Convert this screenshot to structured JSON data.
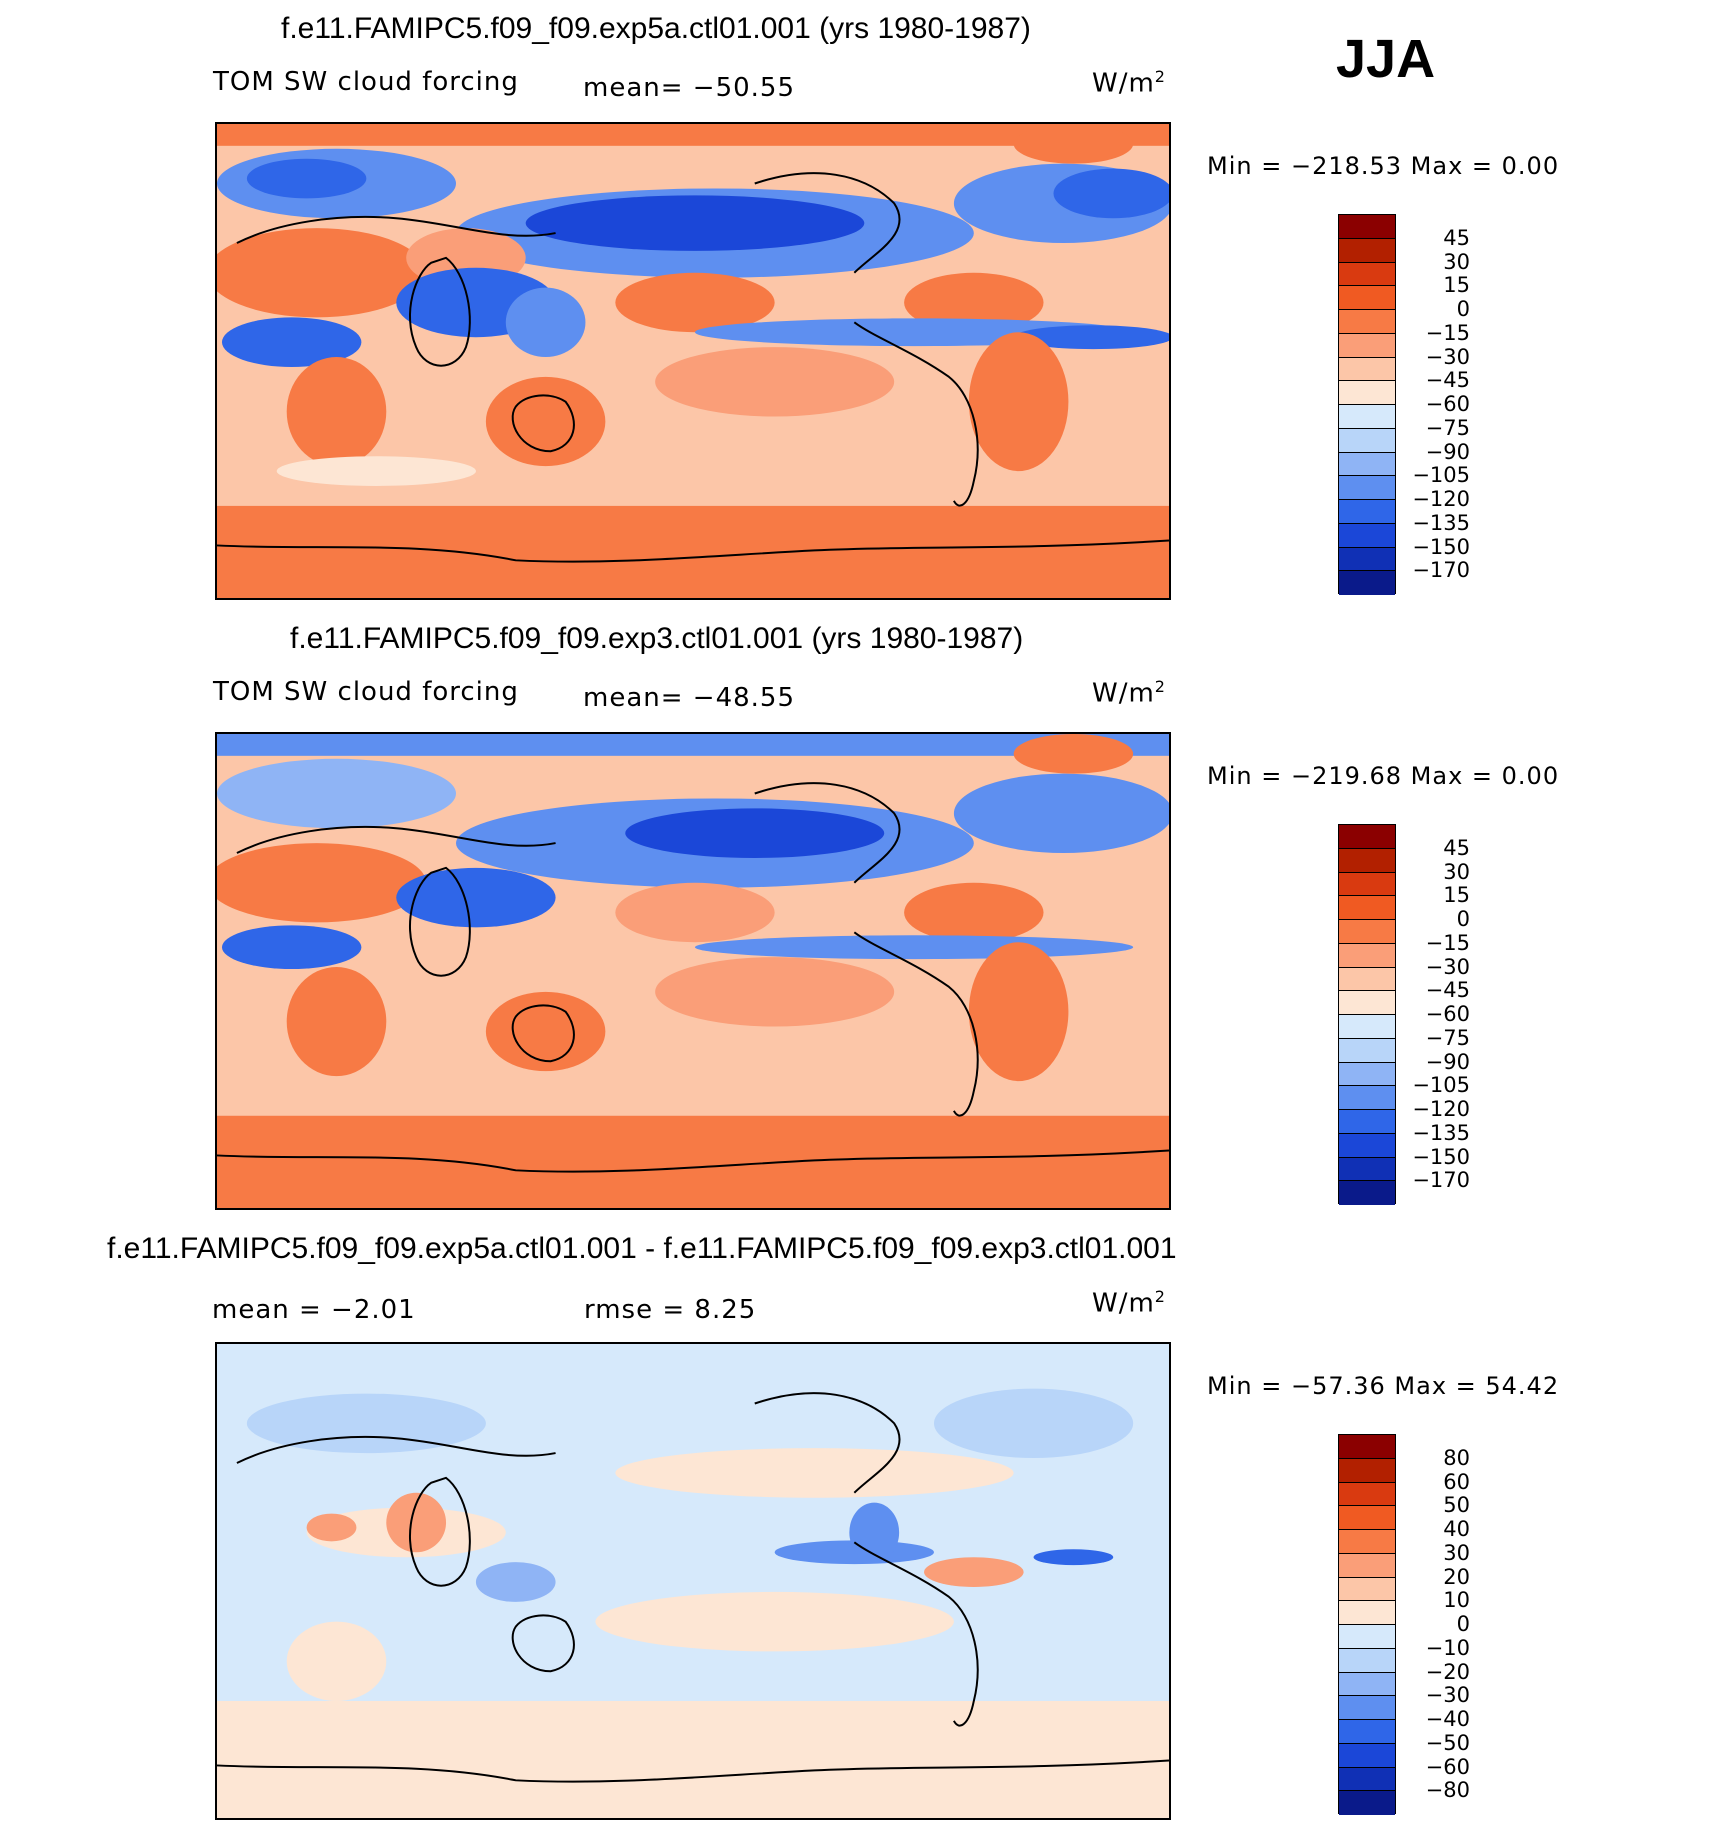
{
  "season": "JJA",
  "panels": [
    {
      "title": "f.e11.FAMIPC5.f09_f09.exp5a.ctl01.001 (yrs 1980-1987)",
      "left_label": "TOM SW cloud forcing",
      "stat": "mean=  −50.55",
      "stat2": "",
      "units": "W/m",
      "units_sup": "2",
      "minmax": "Min  =  −218.53  Max  =     0.00",
      "colorbar": {
        "labels": [
          "45",
          "30",
          "15",
          "0",
          "−15",
          "−30",
          "−45",
          "−60",
          "−75",
          "−90",
          "−105",
          "−120",
          "−135",
          "−150",
          "−170"
        ],
        "colors": [
          "#8b0000",
          "#b22000",
          "#d93a10",
          "#f05a22",
          "#f77a45",
          "#fa9e78",
          "#fcc6a8",
          "#fde6d4",
          "#d6e9fb",
          "#b8d5f9",
          "#8fb4f5",
          "#5e8ff0",
          "#2f66e8",
          "#1b47d8",
          "#1030b5",
          "#0a1a8a"
        ]
      },
      "map_type": "absolute"
    },
    {
      "title": "f.e11.FAMIPC5.f09_f09.exp3.ctl01.001 (yrs 1980-1987)",
      "left_label": "TOM SW cloud forcing",
      "stat": "mean=  −48.55",
      "stat2": "",
      "units": "W/m",
      "units_sup": "2",
      "minmax": "Min  =  −219.68  Max  =     0.00",
      "colorbar": {
        "labels": [
          "45",
          "30",
          "15",
          "0",
          "−15",
          "−30",
          "−45",
          "−60",
          "−75",
          "−90",
          "−105",
          "−120",
          "−135",
          "−150",
          "−170"
        ],
        "colors": [
          "#8b0000",
          "#b22000",
          "#d93a10",
          "#f05a22",
          "#f77a45",
          "#fa9e78",
          "#fcc6a8",
          "#fde6d4",
          "#d6e9fb",
          "#b8d5f9",
          "#8fb4f5",
          "#5e8ff0",
          "#2f66e8",
          "#1b47d8",
          "#1030b5",
          "#0a1a8a"
        ]
      },
      "map_type": "absolute"
    },
    {
      "title": "f.e11.FAMIPC5.f09_f09.exp5a.ctl01.001 - f.e11.FAMIPC5.f09_f09.exp3.ctl01.001",
      "left_label": "mean  =    −2.01",
      "stat": "rmse  =      8.25",
      "stat2": "",
      "units": "W/m",
      "units_sup": "2",
      "minmax": "Min  =  −57.36  Max  =   54.42",
      "colorbar": {
        "labels": [
          "80",
          "60",
          "50",
          "40",
          "30",
          "20",
          "10",
          "0",
          "−10",
          "−20",
          "−30",
          "−40",
          "−50",
          "−60",
          "−80"
        ],
        "colors": [
          "#8b0000",
          "#b22000",
          "#d93a10",
          "#f05a22",
          "#f77a45",
          "#fa9e78",
          "#fcc6a8",
          "#fde6d4",
          "#d6e9fb",
          "#b8d5f9",
          "#8fb4f5",
          "#5e8ff0",
          "#2f66e8",
          "#1b47d8",
          "#1030b5",
          "#0a1a8a"
        ]
      },
      "map_type": "difference"
    }
  ]
}
